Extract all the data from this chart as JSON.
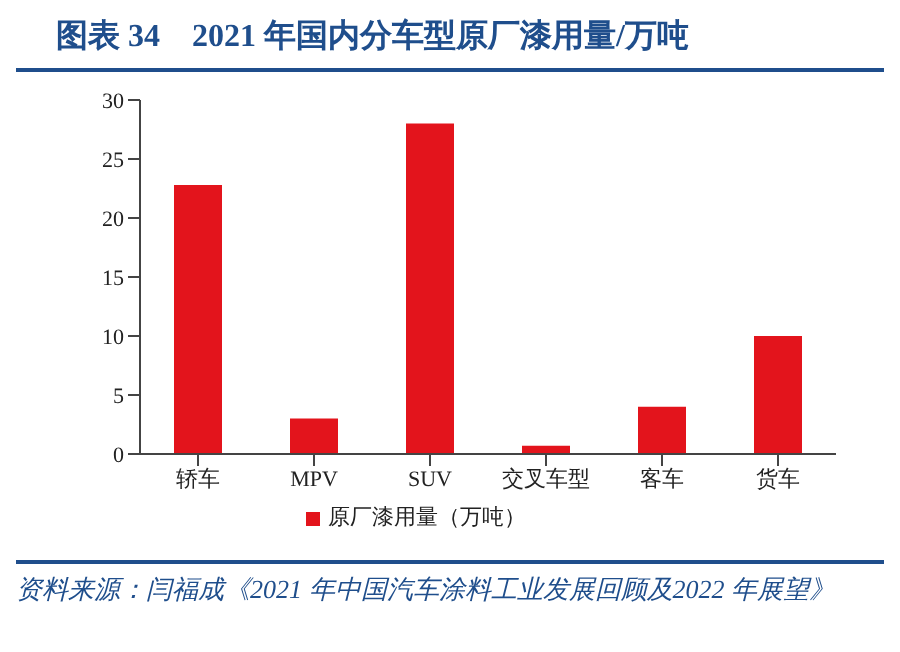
{
  "chart_data": {
    "type": "bar",
    "title": "图表 34　2021 年国内分车型原厂漆用量/万吨",
    "categories": [
      "轿车",
      "MPV",
      "SUV",
      "交叉车型",
      "客车",
      "货车"
    ],
    "series": [
      {
        "name": "原厂漆用量（万吨）",
        "color": "#e3141c",
        "values": [
          22.8,
          3,
          28,
          0.7,
          4,
          10
        ]
      }
    ],
    "ylim": [
      0,
      30
    ],
    "yticks": [
      0,
      5,
      10,
      15,
      20,
      25,
      30
    ],
    "grid": false,
    "legend": "bottom",
    "annotations": [
      "资料来源：闫福成《2021 年中国汽车涂料工业发展回顾及2022 年展望》"
    ]
  }
}
